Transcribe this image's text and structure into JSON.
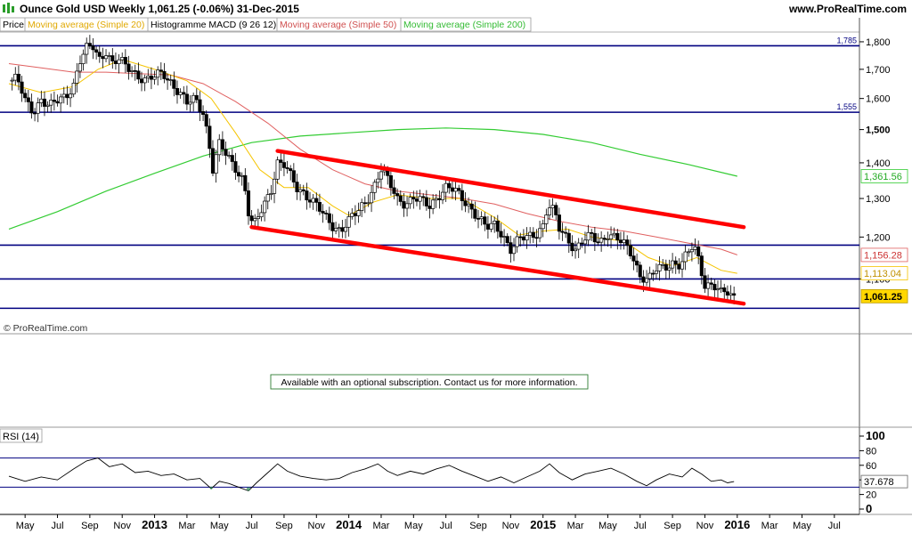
{
  "header": {
    "title": "Ounce Gold USD   Weekly   1,061.25 (-0.06%)   31-Dec-2015",
    "site": "www.ProRealTime.com"
  },
  "legend": {
    "price": "Price",
    "ma20": "Moving average (Simple 20)",
    "macd": "Histogramme MACD (9 26 12)",
    "ma50": "Moving average (Simple 50)",
    "ma200": "Moving average (Simple 200)"
  },
  "watermark": "© ProRealTime.com",
  "subscription_note": "Available with an optional subscription. Contact us for more information.",
  "rsi_label": "RSI (14)",
  "colors": {
    "up": "#ffffff",
    "down": "#000000",
    "ma20": "#f5c400",
    "ma50": "#e06060",
    "ma200": "#33cc33",
    "channel": "#ff0000",
    "hline": "#000080"
  },
  "chart_data": {
    "type": "candlestick",
    "period": "weekly",
    "x_start": "2012-04",
    "x_end": "2016-08",
    "y_scale": "log",
    "ylim": [
      1000,
      1830
    ],
    "yticks": [
      {
        "v": 1800,
        "label": "1,800"
      },
      {
        "v": 1700,
        "label": "1,700"
      },
      {
        "v": 1600,
        "label": "1,600"
      },
      {
        "v": 1500,
        "label": "1,500"
      },
      {
        "v": 1400,
        "label": "1,400"
      },
      {
        "v": 1300,
        "label": "1,300"
      },
      {
        "v": 1200,
        "label": "1,200"
      },
      {
        "v": 1100,
        "label": "1,100"
      }
    ],
    "xticks": [
      {
        "label": "May",
        "t": 1.0,
        "bold": false
      },
      {
        "label": "Jul",
        "t": 3.0,
        "bold": false
      },
      {
        "label": "Sep",
        "t": 5.0,
        "bold": false
      },
      {
        "label": "Nov",
        "t": 7.0,
        "bold": false
      },
      {
        "label": "2013",
        "t": 9.0,
        "bold": true
      },
      {
        "label": "Mar",
        "t": 11.0,
        "bold": false
      },
      {
        "label": "May",
        "t": 13.0,
        "bold": false
      },
      {
        "label": "Jul",
        "t": 15.0,
        "bold": false
      },
      {
        "label": "Sep",
        "t": 17.0,
        "bold": false
      },
      {
        "label": "Nov",
        "t": 19.0,
        "bold": false
      },
      {
        "label": "2014",
        "t": 21.0,
        "bold": true
      },
      {
        "label": "Mar",
        "t": 23.0,
        "bold": false
      },
      {
        "label": "May",
        "t": 25.0,
        "bold": false
      },
      {
        "label": "Jul",
        "t": 27.0,
        "bold": false
      },
      {
        "label": "Sep",
        "t": 29.0,
        "bold": false
      },
      {
        "label": "Nov",
        "t": 31.0,
        "bold": false
      },
      {
        "label": "2015",
        "t": 33.0,
        "bold": true
      },
      {
        "label": "Mar",
        "t": 35.0,
        "bold": false
      },
      {
        "label": "May",
        "t": 37.0,
        "bold": false
      },
      {
        "label": "Jul",
        "t": 39.0,
        "bold": false
      },
      {
        "label": "Sep",
        "t": 41.0,
        "bold": false
      },
      {
        "label": "Nov",
        "t": 43.0,
        "bold": false
      },
      {
        "label": "2016",
        "t": 45.0,
        "bold": true
      },
      {
        "label": "Mar",
        "t": 47.0,
        "bold": false
      },
      {
        "label": "May",
        "t": 49.0,
        "bold": false
      },
      {
        "label": "Jul",
        "t": 51.0,
        "bold": false
      }
    ],
    "close_series": [
      {
        "t": 0.0,
        "v": 1660
      },
      {
        "t": 0.5,
        "v": 1665
      },
      {
        "t": 1.0,
        "v": 1590
      },
      {
        "t": 1.5,
        "v": 1560
      },
      {
        "t": 2.0,
        "v": 1600
      },
      {
        "t": 2.5,
        "v": 1570
      },
      {
        "t": 3.0,
        "v": 1590
      },
      {
        "t": 3.5,
        "v": 1610
      },
      {
        "t": 4.0,
        "v": 1650
      },
      {
        "t": 4.4,
        "v": 1730
      },
      {
        "t": 4.8,
        "v": 1770
      },
      {
        "t": 5.2,
        "v": 1780
      },
      {
        "t": 5.6,
        "v": 1740
      },
      {
        "t": 6.0,
        "v": 1770
      },
      {
        "t": 6.4,
        "v": 1720
      },
      {
        "t": 6.8,
        "v": 1730
      },
      {
        "t": 7.2,
        "v": 1710
      },
      {
        "t": 7.6,
        "v": 1700
      },
      {
        "t": 8.0,
        "v": 1680
      },
      {
        "t": 8.5,
        "v": 1660
      },
      {
        "t": 9.0,
        "v": 1670
      },
      {
        "t": 9.5,
        "v": 1690
      },
      {
        "t": 10.0,
        "v": 1660
      },
      {
        "t": 10.5,
        "v": 1620
      },
      {
        "t": 11.0,
        "v": 1580
      },
      {
        "t": 11.5,
        "v": 1600
      },
      {
        "t": 12.0,
        "v": 1560
      },
      {
        "t": 12.3,
        "v": 1480
      },
      {
        "t": 12.6,
        "v": 1380
      },
      {
        "t": 13.0,
        "v": 1450
      },
      {
        "t": 13.5,
        "v": 1420
      },
      {
        "t": 14.0,
        "v": 1390
      },
      {
        "t": 14.5,
        "v": 1350
      },
      {
        "t": 14.8,
        "v": 1260
      },
      {
        "t": 15.1,
        "v": 1220
      },
      {
        "t": 15.4,
        "v": 1250
      },
      {
        "t": 15.8,
        "v": 1290
      },
      {
        "t": 16.2,
        "v": 1330
      },
      {
        "t": 16.6,
        "v": 1400
      },
      {
        "t": 17.0,
        "v": 1390
      },
      {
        "t": 17.4,
        "v": 1360
      },
      {
        "t": 17.8,
        "v": 1330
      },
      {
        "t": 18.2,
        "v": 1320
      },
      {
        "t": 18.6,
        "v": 1300
      },
      {
        "t": 19.0,
        "v": 1280
      },
      {
        "t": 19.5,
        "v": 1250
      },
      {
        "t": 20.0,
        "v": 1230
      },
      {
        "t": 20.5,
        "v": 1220
      },
      {
        "t": 21.0,
        "v": 1240
      },
      {
        "t": 21.5,
        "v": 1260
      },
      {
        "t": 22.0,
        "v": 1290
      },
      {
        "t": 22.5,
        "v": 1330
      },
      {
        "t": 23.0,
        "v": 1380
      },
      {
        "t": 23.5,
        "v": 1340
      },
      {
        "t": 24.0,
        "v": 1300
      },
      {
        "t": 24.5,
        "v": 1290
      },
      {
        "t": 25.0,
        "v": 1300
      },
      {
        "t": 25.5,
        "v": 1290
      },
      {
        "t": 26.0,
        "v": 1280
      },
      {
        "t": 26.5,
        "v": 1310
      },
      {
        "t": 27.0,
        "v": 1330
      },
      {
        "t": 27.5,
        "v": 1320
      },
      {
        "t": 28.0,
        "v": 1300
      },
      {
        "t": 28.5,
        "v": 1280
      },
      {
        "t": 29.0,
        "v": 1250
      },
      {
        "t": 29.5,
        "v": 1220
      },
      {
        "t": 30.0,
        "v": 1230
      },
      {
        "t": 30.5,
        "v": 1210
      },
      {
        "t": 31.0,
        "v": 1170
      },
      {
        "t": 31.5,
        "v": 1190
      },
      {
        "t": 32.0,
        "v": 1200
      },
      {
        "t": 32.5,
        "v": 1210
      },
      {
        "t": 33.0,
        "v": 1230
      },
      {
        "t": 33.3,
        "v": 1280
      },
      {
        "t": 33.7,
        "v": 1260
      },
      {
        "t": 34.0,
        "v": 1220
      },
      {
        "t": 34.5,
        "v": 1200
      },
      {
        "t": 35.0,
        "v": 1170
      },
      {
        "t": 35.5,
        "v": 1190
      },
      {
        "t": 36.0,
        "v": 1200
      },
      {
        "t": 36.5,
        "v": 1190
      },
      {
        "t": 37.0,
        "v": 1210
      },
      {
        "t": 37.5,
        "v": 1195
      },
      {
        "t": 38.0,
        "v": 1180
      },
      {
        "t": 38.5,
        "v": 1160
      },
      {
        "t": 39.0,
        "v": 1110
      },
      {
        "t": 39.5,
        "v": 1095
      },
      {
        "t": 40.0,
        "v": 1120
      },
      {
        "t": 40.5,
        "v": 1130
      },
      {
        "t": 41.0,
        "v": 1140
      },
      {
        "t": 41.5,
        "v": 1130
      },
      {
        "t": 42.0,
        "v": 1160
      },
      {
        "t": 42.3,
        "v": 1180
      },
      {
        "t": 42.6,
        "v": 1150
      },
      {
        "t": 43.0,
        "v": 1090
      },
      {
        "t": 43.5,
        "v": 1085
      },
      {
        "t": 44.0,
        "v": 1065
      },
      {
        "t": 44.4,
        "v": 1070
      },
      {
        "t": 44.8,
        "v": 1061.25
      }
    ],
    "ma20": [
      {
        "t": 0.0,
        "v": 1650
      },
      {
        "t": 2.0,
        "v": 1620
      },
      {
        "t": 4.0,
        "v": 1640
      },
      {
        "t": 5.5,
        "v": 1700
      },
      {
        "t": 7.0,
        "v": 1735
      },
      {
        "t": 9.0,
        "v": 1700
      },
      {
        "t": 11.0,
        "v": 1660
      },
      {
        "t": 12.5,
        "v": 1600
      },
      {
        "t": 14.0,
        "v": 1490
      },
      {
        "t": 15.5,
        "v": 1380
      },
      {
        "t": 17.0,
        "v": 1330
      },
      {
        "t": 18.5,
        "v": 1330
      },
      {
        "t": 20.0,
        "v": 1280
      },
      {
        "t": 21.0,
        "v": 1255
      },
      {
        "t": 22.5,
        "v": 1290
      },
      {
        "t": 24.0,
        "v": 1310
      },
      {
        "t": 26.0,
        "v": 1300
      },
      {
        "t": 28.0,
        "v": 1300
      },
      {
        "t": 30.0,
        "v": 1250
      },
      {
        "t": 31.5,
        "v": 1205
      },
      {
        "t": 33.0,
        "v": 1215
      },
      {
        "t": 34.5,
        "v": 1220
      },
      {
        "t": 36.0,
        "v": 1200
      },
      {
        "t": 38.0,
        "v": 1190
      },
      {
        "t": 39.5,
        "v": 1150
      },
      {
        "t": 41.0,
        "v": 1130
      },
      {
        "t": 42.5,
        "v": 1150
      },
      {
        "t": 44.0,
        "v": 1120
      },
      {
        "t": 45.0,
        "v": 1113.04
      }
    ],
    "ma50": [
      {
        "t": 0.0,
        "v": 1720
      },
      {
        "t": 2.0,
        "v": 1705
      },
      {
        "t": 4.0,
        "v": 1690
      },
      {
        "t": 6.0,
        "v": 1690
      },
      {
        "t": 8.0,
        "v": 1685
      },
      {
        "t": 10.0,
        "v": 1680
      },
      {
        "t": 12.0,
        "v": 1650
      },
      {
        "t": 14.0,
        "v": 1590
      },
      {
        "t": 16.0,
        "v": 1520
      },
      {
        "t": 18.0,
        "v": 1440
      },
      {
        "t": 20.0,
        "v": 1380
      },
      {
        "t": 22.0,
        "v": 1340
      },
      {
        "t": 24.0,
        "v": 1320
      },
      {
        "t": 26.0,
        "v": 1310
      },
      {
        "t": 28.0,
        "v": 1300
      },
      {
        "t": 30.0,
        "v": 1285
      },
      {
        "t": 32.0,
        "v": 1260
      },
      {
        "t": 34.0,
        "v": 1240
      },
      {
        "t": 36.0,
        "v": 1225
      },
      {
        "t": 38.0,
        "v": 1215
      },
      {
        "t": 40.0,
        "v": 1200
      },
      {
        "t": 42.0,
        "v": 1185
      },
      {
        "t": 44.0,
        "v": 1170
      },
      {
        "t": 45.0,
        "v": 1156.28
      }
    ],
    "ma200": [
      {
        "t": 0.0,
        "v": 1220
      },
      {
        "t": 3.0,
        "v": 1265
      },
      {
        "t": 6.0,
        "v": 1320
      },
      {
        "t": 9.0,
        "v": 1370
      },
      {
        "t": 12.0,
        "v": 1420
      },
      {
        "t": 15.0,
        "v": 1460
      },
      {
        "t": 18.0,
        "v": 1480
      },
      {
        "t": 21.0,
        "v": 1490
      },
      {
        "t": 24.0,
        "v": 1500
      },
      {
        "t": 27.0,
        "v": 1505
      },
      {
        "t": 30.0,
        "v": 1500
      },
      {
        "t": 33.0,
        "v": 1485
      },
      {
        "t": 36.0,
        "v": 1460
      },
      {
        "t": 39.0,
        "v": 1425
      },
      {
        "t": 42.0,
        "v": 1395
      },
      {
        "t": 45.0,
        "v": 1361.56
      }
    ],
    "channel_lines": [
      {
        "name": "upper",
        "p1": {
          "t": 16.6,
          "v": 1435
        },
        "p2": {
          "t": 45.4,
          "v": 1225
        }
      },
      {
        "name": "lower",
        "p1": {
          "t": 15.0,
          "v": 1225
        },
        "p2": {
          "t": 45.4,
          "v": 1045
        }
      }
    ],
    "horizontal_levels": [
      {
        "v": 1785,
        "label": "1,785"
      },
      {
        "v": 1555,
        "label": "1,555"
      },
      {
        "v": 1180,
        "label": ""
      },
      {
        "v": 1100,
        "label": ""
      },
      {
        "v": 1035,
        "label": ""
      }
    ],
    "last_value_tags": [
      {
        "series": "ma200",
        "value": "1,361.56"
      },
      {
        "series": "ma50",
        "value": "1,156.28"
      },
      {
        "series": "ma20",
        "value": "1,113.04"
      },
      {
        "series": "price",
        "value": "1,061.25"
      }
    ],
    "rsi": {
      "ylim": [
        0,
        100
      ],
      "yticks": [
        100,
        80,
        60,
        40,
        20,
        0
      ],
      "upper_band": 70,
      "lower_band": 30,
      "last_value": "37.678",
      "values": [
        {
          "t": 0.0,
          "v": 45
        },
        {
          "t": 1.0,
          "v": 38
        },
        {
          "t": 2.0,
          "v": 44
        },
        {
          "t": 3.0,
          "v": 40
        },
        {
          "t": 4.0,
          "v": 55
        },
        {
          "t": 4.8,
          "v": 66
        },
        {
          "t": 5.5,
          "v": 70
        },
        {
          "t": 6.2,
          "v": 58
        },
        {
          "t": 7.0,
          "v": 62
        },
        {
          "t": 7.8,
          "v": 50
        },
        {
          "t": 8.6,
          "v": 52
        },
        {
          "t": 9.4,
          "v": 46
        },
        {
          "t": 10.2,
          "v": 48
        },
        {
          "t": 11.0,
          "v": 40
        },
        {
          "t": 11.8,
          "v": 42
        },
        {
          "t": 12.5,
          "v": 28
        },
        {
          "t": 13.0,
          "v": 38
        },
        {
          "t": 13.6,
          "v": 35
        },
        {
          "t": 14.2,
          "v": 30
        },
        {
          "t": 14.8,
          "v": 25
        },
        {
          "t": 15.3,
          "v": 36
        },
        {
          "t": 16.0,
          "v": 50
        },
        {
          "t": 16.6,
          "v": 62
        },
        {
          "t": 17.2,
          "v": 52
        },
        {
          "t": 18.0,
          "v": 45
        },
        {
          "t": 18.8,
          "v": 42
        },
        {
          "t": 19.6,
          "v": 40
        },
        {
          "t": 20.4,
          "v": 42
        },
        {
          "t": 21.2,
          "v": 50
        },
        {
          "t": 22.0,
          "v": 55
        },
        {
          "t": 22.8,
          "v": 62
        },
        {
          "t": 23.4,
          "v": 52
        },
        {
          "t": 24.0,
          "v": 46
        },
        {
          "t": 24.8,
          "v": 52
        },
        {
          "t": 25.6,
          "v": 48
        },
        {
          "t": 26.4,
          "v": 55
        },
        {
          "t": 27.2,
          "v": 60
        },
        {
          "t": 28.0,
          "v": 52
        },
        {
          "t": 28.8,
          "v": 45
        },
        {
          "t": 29.6,
          "v": 38
        },
        {
          "t": 30.4,
          "v": 44
        },
        {
          "t": 31.2,
          "v": 36
        },
        {
          "t": 32.0,
          "v": 44
        },
        {
          "t": 32.8,
          "v": 52
        },
        {
          "t": 33.4,
          "v": 62
        },
        {
          "t": 34.0,
          "v": 50
        },
        {
          "t": 34.8,
          "v": 40
        },
        {
          "t": 35.6,
          "v": 48
        },
        {
          "t": 36.4,
          "v": 52
        },
        {
          "t": 37.2,
          "v": 56
        },
        {
          "t": 38.0,
          "v": 48
        },
        {
          "t": 38.8,
          "v": 38
        },
        {
          "t": 39.4,
          "v": 32
        },
        {
          "t": 40.0,
          "v": 40
        },
        {
          "t": 40.8,
          "v": 48
        },
        {
          "t": 41.6,
          "v": 44
        },
        {
          "t": 42.2,
          "v": 56
        },
        {
          "t": 42.8,
          "v": 48
        },
        {
          "t": 43.4,
          "v": 38
        },
        {
          "t": 44.0,
          "v": 40
        },
        {
          "t": 44.4,
          "v": 36
        },
        {
          "t": 44.8,
          "v": 37.678
        }
      ]
    }
  }
}
